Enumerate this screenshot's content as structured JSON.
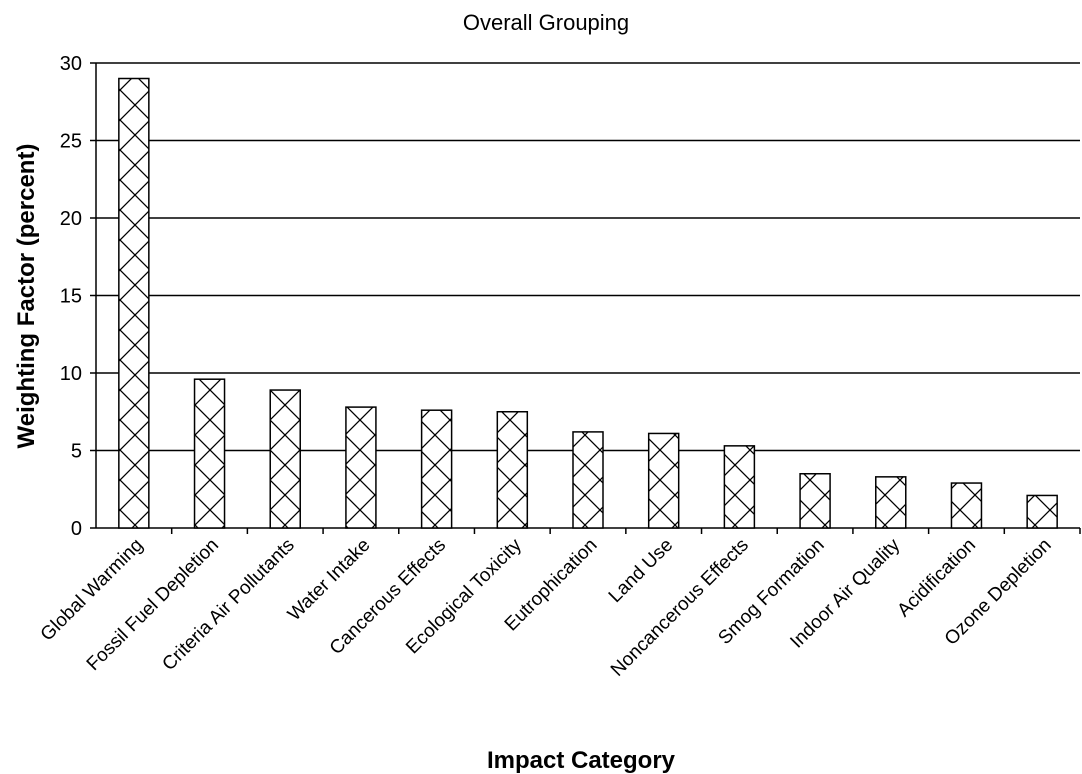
{
  "chart_data": {
    "type": "bar",
    "title": "Overall Grouping",
    "xlabel": "Impact Category",
    "ylabel": "Weighting Factor (percent)",
    "ylim": [
      0,
      30
    ],
    "yticks": [
      0,
      5,
      10,
      15,
      20,
      25,
      30
    ],
    "grid": "horizontal major gridlines on",
    "legend": "none",
    "bar_fill": "cross-hatch pattern on white, black outline",
    "colors": {
      "bar_outline": "#000000",
      "bar_hatch": "#000000",
      "bar_fill": "#ffffff",
      "gridline": "#000000",
      "background": "#ffffff"
    },
    "categories": [
      "Global Warming",
      "Fossil Fuel Depletion",
      "Criteria Air Pollutants",
      "Water Intake",
      "Cancerous Effects",
      "Ecological Toxicity",
      "Eutrophication",
      "Land Use",
      "Noncancerous Effects",
      "Smog Formation",
      "Indoor Air Quality",
      "Acidification",
      "Ozone Depletion"
    ],
    "values": [
      29.0,
      9.6,
      8.9,
      7.8,
      7.6,
      7.5,
      6.2,
      6.1,
      5.3,
      3.5,
      3.3,
      2.9,
      2.1
    ]
  }
}
